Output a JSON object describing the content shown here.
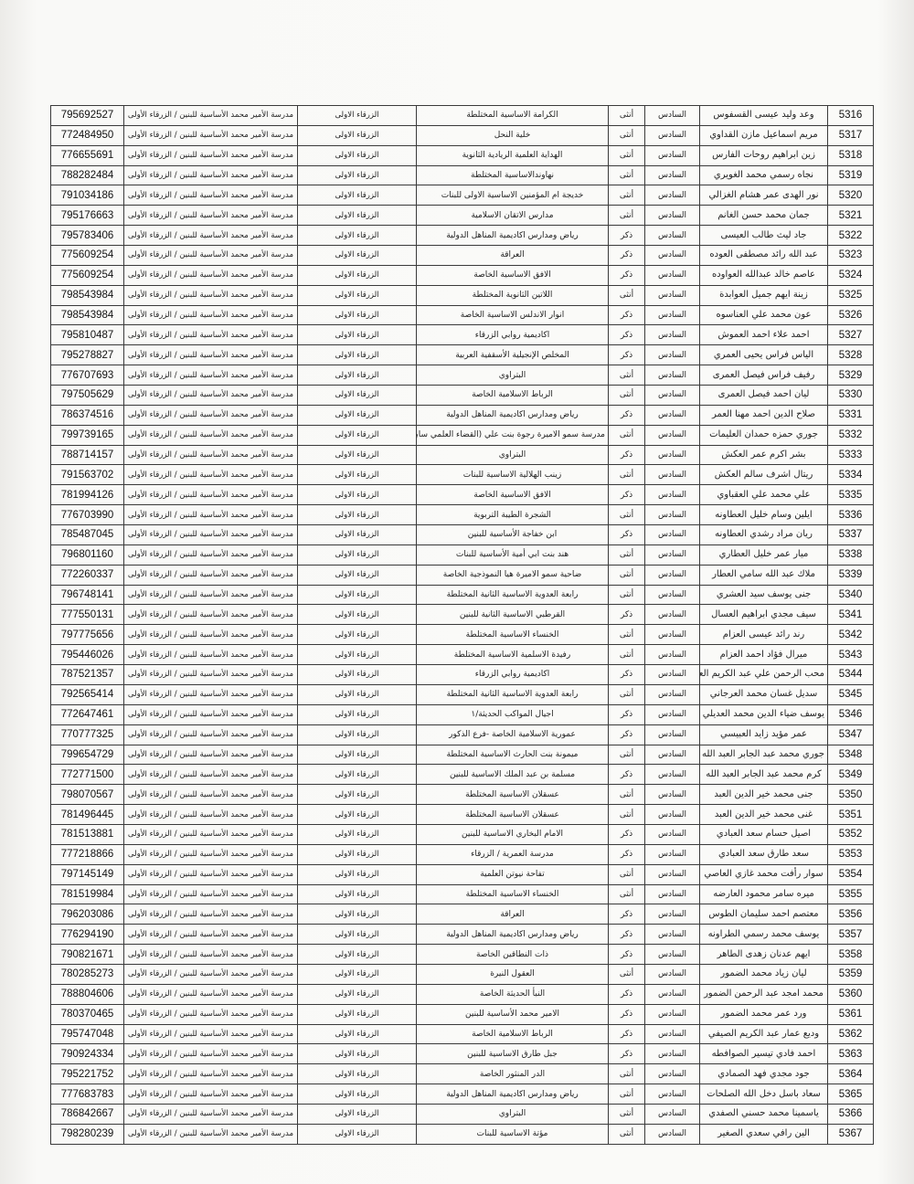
{
  "defaults": {
    "grade": "السادس",
    "region": "الزرقاء الاولى",
    "exam_center": "مدرسة الأمير محمد الأساسية للبنين / الزرقاء الأولى"
  },
  "rows": [
    {
      "no": "5316",
      "name": "وعد وليد عيسى القسفوس",
      "grade": "السادس",
      "gender": "أنثى",
      "school": "الكرامة الاساسية المختلطة",
      "region": "الزرقاء الاولى",
      "center": "مدرسة الأمير محمد الأساسية للبنين / الزرقاء الأولى",
      "phone": "795692527"
    },
    {
      "no": "5317",
      "name": "مريم اسماعيل مازن القداوي",
      "grade": "السادس",
      "gender": "أنثى",
      "school": "خلية النحل",
      "region": "الزرقاء الاولى",
      "center": "مدرسة الأمير محمد الأساسية للبنين / الزرقاء الأولى",
      "phone": "772484950"
    },
    {
      "no": "5318",
      "name": "زين ابراهيم روحات الفارس",
      "grade": "السادس",
      "gender": "أنثى",
      "school": "الهداية العلمية الريادية الثانوية",
      "region": "الزرقاء الاولى",
      "center": "مدرسة الأمير محمد الأساسية للبنين / الزرقاء الأولى",
      "phone": "776655691"
    },
    {
      "no": "5319",
      "name": "نجاه رسمي محمد الغويري",
      "grade": "السادس",
      "gender": "أنثى",
      "school": "نهاوندالاساسية المختلطة",
      "region": "الزرقاء الاولى",
      "center": "مدرسة الأمير محمد الأساسية للبنين / الزرقاء الأولى",
      "phone": "788282484"
    },
    {
      "no": "5320",
      "name": "نور الهدى عمر هشام الغزالي",
      "grade": "السادس",
      "gender": "أنثى",
      "school": "خديجة ام المؤمنين الاساسية الاولى للبنات",
      "region": "الزرقاء الاولى",
      "center": "مدرسة الأمير محمد الأساسية للبنين / الزرقاء الأولى",
      "phone": "791034186"
    },
    {
      "no": "5321",
      "name": "جمان محمد حسن الغانم",
      "grade": "السادس",
      "gender": "أنثى",
      "school": "مدارس الاتقان الاسلامية",
      "region": "الزرقاء الاولى",
      "center": "مدرسة الأمير محمد الأساسية للبنين / الزرقاء الأولى",
      "phone": "795176663"
    },
    {
      "no": "5322",
      "name": "جاد ليث طالب العيسى",
      "grade": "السادس",
      "gender": "ذكر",
      "school": "رياض ومدارس اكاديمية المناهل الدولية",
      "region": "الزرقاء الاولى",
      "center": "مدرسة الأمير محمد الأساسية للبنين / الزرقاء الأولى",
      "phone": "795783406"
    },
    {
      "no": "5323",
      "name": "عبد الله رائد مصطفى العوده",
      "grade": "السادس",
      "gender": "ذكر",
      "school": "العراقة",
      "region": "الزرقاء الاولى",
      "center": "مدرسة الأمير محمد الأساسية للبنين / الزرقاء الأولى",
      "phone": "775609254"
    },
    {
      "no": "5324",
      "name": "عاصم خالد عبدالله العواوده",
      "grade": "السادس",
      "gender": "ذكر",
      "school": "الافق الاساسية الخاصة",
      "region": "الزرقاء الاولى",
      "center": "مدرسة الأمير محمد الأساسية للبنين / الزرقاء الأولى",
      "phone": "775609254"
    },
    {
      "no": "5325",
      "name": "زينة ايهم جميل العوابدة",
      "grade": "السادس",
      "gender": "أنثى",
      "school": "اللاتين الثانوية المختلطة",
      "region": "الزرقاء الاولى",
      "center": "مدرسة الأمير محمد الأساسية للبنين / الزرقاء الأولى",
      "phone": "798543984"
    },
    {
      "no": "5326",
      "name": "عون محمد علي العناسوه",
      "grade": "السادس",
      "gender": "ذكر",
      "school": "انوار الاندلس الاساسية الخاصة",
      "region": "الزرقاء الاولى",
      "center": "مدرسة الأمير محمد الأساسية للبنين / الزرقاء الأولى",
      "phone": "798543984"
    },
    {
      "no": "5327",
      "name": "احمد علاء احمد العموش",
      "grade": "السادس",
      "gender": "ذكر",
      "school": "اكاديمية روابي الزرقاء",
      "region": "الزرقاء الاولى",
      "center": "مدرسة الأمير محمد الأساسية للبنين / الزرقاء الأولى",
      "phone": "795810487"
    },
    {
      "no": "5328",
      "name": "الياس فراس يحيى العمري",
      "grade": "السادس",
      "gender": "ذكر",
      "school": "المخلص الإنجيلية الأسقفية العربية",
      "region": "الزرقاء الاولى",
      "center": "مدرسة الأمير محمد الأساسية للبنين / الزرقاء الأولى",
      "phone": "795278827"
    },
    {
      "no": "5329",
      "name": "رفيف فراس فيصل العمرى",
      "grade": "السادس",
      "gender": "أنثى",
      "school": "البتراوي",
      "region": "الزرقاء الاولى",
      "center": "مدرسة الأمير محمد الأساسية للبنين / الزرقاء الأولى",
      "phone": "776707693"
    },
    {
      "no": "5330",
      "name": "ليان احمد فيصل العمرى",
      "grade": "السادس",
      "gender": "أنثى",
      "school": "الرباط الاسلامية الخاصة",
      "region": "الزرقاء الاولى",
      "center": "مدرسة الأمير محمد الأساسية للبنين / الزرقاء الأولى",
      "phone": "797505629"
    },
    {
      "no": "5331",
      "name": "صلاح الدين احمد مهنا العمر",
      "grade": "السادس",
      "gender": "ذكر",
      "school": "رياض ومدارس اكاديمية المناهل الدولية",
      "region": "الزرقاء الاولى",
      "center": "مدرسة الأمير محمد الأساسية للبنين / الزرقاء الأولى",
      "phone": "786374516"
    },
    {
      "no": "5332",
      "name": "جوري حمزه حمدان العليمات",
      "grade": "السادس",
      "gender": "أنثى",
      "school": "مدرسة سمو الاميرة رجوة بنت علي (القضاء العلمي سابقا)",
      "region": "الزرقاء الاولى",
      "center": "مدرسة الأمير محمد الأساسية للبنين / الزرقاء الأولى",
      "phone": "799739165"
    },
    {
      "no": "5333",
      "name": "بشر اكرم عمر العكش",
      "grade": "السادس",
      "gender": "ذكر",
      "school": "البتراوي",
      "region": "الزرقاء الاولى",
      "center": "مدرسة الأمير محمد الأساسية للبنين / الزرقاء الأولى",
      "phone": "788714157"
    },
    {
      "no": "5334",
      "name": "ريتال اشرف سالم العكش",
      "grade": "السادس",
      "gender": "أنثى",
      "school": "زينب الهلالية الاساسية للبنات",
      "region": "الزرقاء الاولى",
      "center": "مدرسة الأمير محمد الأساسية للبنين / الزرقاء الأولى",
      "phone": "791563702"
    },
    {
      "no": "5335",
      "name": "علي محمد علي العقباوي",
      "grade": "السادس",
      "gender": "ذكر",
      "school": "الافق الاساسية الخاصة",
      "region": "الزرقاء الاولى",
      "center": "مدرسة الأمير محمد الأساسية للبنين / الزرقاء الأولى",
      "phone": "781994126"
    },
    {
      "no": "5336",
      "name": "ايلين وسام خليل العطاونه",
      "grade": "السادس",
      "gender": "أنثى",
      "school": "الشجرة الطيبة التربوية",
      "region": "الزرقاء الاولى",
      "center": "مدرسة الأمير محمد الأساسية للبنين / الزرقاء الأولى",
      "phone": "776703990"
    },
    {
      "no": "5337",
      "name": "ريان مراد رشدي العطاونه",
      "grade": "السادس",
      "gender": "ذكر",
      "school": "ابن خفاجة الأساسية للبنين",
      "region": "الزرقاء الاولى",
      "center": "مدرسة الأمير محمد الأساسية للبنين / الزرقاء الأولى",
      "phone": "785487045"
    },
    {
      "no": "5338",
      "name": "ميار عمر خليل العطاري",
      "grade": "السادس",
      "gender": "أنثى",
      "school": "هند بنت ابي أمية الأساسية للبنات",
      "region": "الزرقاء الاولى",
      "center": "مدرسة الأمير محمد الأساسية للبنين / الزرقاء الأولى",
      "phone": "796801160"
    },
    {
      "no": "5339",
      "name": "ملاك عبد الله سامي العطار",
      "grade": "السادس",
      "gender": "أنثى",
      "school": "ضاحية سمو الاميرة هيا النموذجية الخاصة",
      "region": "الزرقاء الاولى",
      "center": "مدرسة الأمير محمد الأساسية للبنين / الزرقاء الأولى",
      "phone": "772260337"
    },
    {
      "no": "5340",
      "name": "جنى يوسف سيد العشري",
      "grade": "السادس",
      "gender": "أنثى",
      "school": "رابعة العدوية الاساسية الثانية المختلطة",
      "region": "الزرقاء الاولى",
      "center": "مدرسة الأمير محمد الأساسية للبنين / الزرقاء الأولى",
      "phone": "796748141"
    },
    {
      "no": "5341",
      "name": "سيف مجدي ابراهيم العسال",
      "grade": "السادس",
      "gender": "ذكر",
      "school": "القرطبي الاساسية الثانية للبنين",
      "region": "الزرقاء الاولى",
      "center": "مدرسة الأمير محمد الأساسية للبنين / الزرقاء الأولى",
      "phone": "777550131"
    },
    {
      "no": "5342",
      "name": "رند رائد عيسى العزام",
      "grade": "السادس",
      "gender": "أنثى",
      "school": "الخنساء الاساسية المختلطة",
      "region": "الزرقاء الاولى",
      "center": "مدرسة الأمير محمد الأساسية للبنين / الزرقاء الأولى",
      "phone": "797775656"
    },
    {
      "no": "5343",
      "name": "ميرال فؤاد احمد العزام",
      "grade": "السادس",
      "gender": "أنثى",
      "school": "رفيدة الاسلمية الاساسية المختلطة",
      "region": "الزرقاء الاولى",
      "center": "مدرسة الأمير محمد الأساسية للبنين / الزرقاء الأولى",
      "phone": "795446026"
    },
    {
      "no": "5344",
      "name": "محب الرحمن علي عبد الكريم العرود",
      "grade": "السادس",
      "gender": "ذكر",
      "school": "اكاديمية روابي الزرقاء",
      "region": "الزرقاء الاولى",
      "center": "مدرسة الأمير محمد الأساسية للبنين / الزرقاء الأولى",
      "phone": "787521357"
    },
    {
      "no": "5345",
      "name": "سديل غسان محمد العرجاني",
      "grade": "السادس",
      "gender": "أنثى",
      "school": "رابعة العدوية الاساسية الثانية المختلطة",
      "region": "الزرقاء الاولى",
      "center": "مدرسة الأمير محمد الأساسية للبنين / الزرقاء الأولى",
      "phone": "792565414"
    },
    {
      "no": "5346",
      "name": "يوسف ضياء الدين محمد العديلي",
      "grade": "السادس",
      "gender": "ذكر",
      "school": "اجيال المواكب الحديثة/١",
      "region": "الزرقاء الاولى",
      "center": "مدرسة الأمير محمد الأساسية للبنين / الزرقاء الأولى",
      "phone": "772647461"
    },
    {
      "no": "5347",
      "name": "عمر مؤيد زايد العبيسي",
      "grade": "السادس",
      "gender": "ذكر",
      "school": "عمورية الاسلامية الخاصة -فرع الذكور",
      "region": "الزرقاء الاولى",
      "center": "مدرسة الأمير محمد الأساسية للبنين / الزرقاء الأولى",
      "phone": "770777325"
    },
    {
      "no": "5348",
      "name": "جوري محمد عبد الجابر العبد الله",
      "grade": "السادس",
      "gender": "أنثى",
      "school": "ميمونة بنت الحارث الاساسية المختلطة",
      "region": "الزرقاء الاولى",
      "center": "مدرسة الأمير محمد الأساسية للبنين / الزرقاء الأولى",
      "phone": "799654729"
    },
    {
      "no": "5349",
      "name": "كرم محمد عبد الجابر العبد الله",
      "grade": "السادس",
      "gender": "ذكر",
      "school": "مسلمة بن عبد الملك الاساسية للبنين",
      "region": "الزرقاء الاولى",
      "center": "مدرسة الأمير محمد الأساسية للبنين / الزرقاء الأولى",
      "phone": "772771500"
    },
    {
      "no": "5350",
      "name": "جنى محمد خير الدين العبد",
      "grade": "السادس",
      "gender": "أنثى",
      "school": "عسقلان الاساسية المختلطة",
      "region": "الزرقاء الاولى",
      "center": "مدرسة الأمير محمد الأساسية للبنين / الزرقاء الأولى",
      "phone": "798070567"
    },
    {
      "no": "5351",
      "name": "غنى محمد خير الدين العبد",
      "grade": "السادس",
      "gender": "أنثى",
      "school": "عسقلان الاساسية المختلطة",
      "region": "الزرقاء الاولى",
      "center": "مدرسة الأمير محمد الأساسية للبنين / الزرقاء الأولى",
      "phone": "781496445"
    },
    {
      "no": "5352",
      "name": "اصيل حسام سعد العبادي",
      "grade": "السادس",
      "gender": "ذكر",
      "school": "الامام البخاري الاساسية للبنين",
      "region": "الزرقاء الاولى",
      "center": "مدرسة الأمير محمد الأساسية للبنين / الزرقاء الأولى",
      "phone": "781513881"
    },
    {
      "no": "5353",
      "name": "سعد طارق سعد العبادي",
      "grade": "السادس",
      "gender": "ذكر",
      "school": "مدرسة العمرية / الزرقاء",
      "region": "الزرقاء الاولى",
      "center": "مدرسة الأمير محمد الأساسية للبنين / الزرقاء الأولى",
      "phone": "777218866"
    },
    {
      "no": "5354",
      "name": "سوار رأفت محمد غازي العاصي",
      "grade": "السادس",
      "gender": "أنثى",
      "school": "تفاحة نيوتن العلمية",
      "region": "الزرقاء الاولى",
      "center": "مدرسة الأمير محمد الأساسية للبنين / الزرقاء الأولى",
      "phone": "797145149"
    },
    {
      "no": "5355",
      "name": "ميره سامر محمود العارضه",
      "grade": "السادس",
      "gender": "أنثى",
      "school": "الخنساء الاساسية المختلطة",
      "region": "الزرقاء الاولى",
      "center": "مدرسة الأمير محمد الأساسية للبنين / الزرقاء الأولى",
      "phone": "781519984"
    },
    {
      "no": "5356",
      "name": "معتصم احمد سليمان الطوس",
      "grade": "السادس",
      "gender": "ذكر",
      "school": "العراقة",
      "region": "الزرقاء الاولى",
      "center": "مدرسة الأمير محمد الأساسية للبنين / الزرقاء الأولى",
      "phone": "796203086"
    },
    {
      "no": "5357",
      "name": "يوسف محمد رسمي الطراونه",
      "grade": "السادس",
      "gender": "ذكر",
      "school": "رياض ومدارس اكاديمية المناهل الدولية",
      "region": "الزرقاء الاولى",
      "center": "مدرسة الأمير محمد الأساسية للبنين / الزرقاء الأولى",
      "phone": "776294190"
    },
    {
      "no": "5358",
      "name": "ايهم عدنان زهدى الطاهر",
      "grade": "السادس",
      "gender": "ذكر",
      "school": "ذات النطاقين الخاصة",
      "region": "الزرقاء الاولى",
      "center": "مدرسة الأمير محمد الأساسية للبنين / الزرقاء الأولى",
      "phone": "790821671"
    },
    {
      "no": "5359",
      "name": "ليان زياد محمد الضمور",
      "grade": "السادس",
      "gender": "أنثى",
      "school": "العقول النيرة",
      "region": "الزرقاء الاولى",
      "center": "مدرسة الأمير محمد الأساسية للبنين / الزرقاء الأولى",
      "phone": "780285273"
    },
    {
      "no": "5360",
      "name": "محمد امجد عبد الرحمن الضمور",
      "grade": "السادس",
      "gender": "ذكر",
      "school": "النبأ الحديثة الخاصة",
      "region": "الزرقاء الاولى",
      "center": "مدرسة الأمير محمد الأساسية للبنين / الزرقاء الأولى",
      "phone": "788804606"
    },
    {
      "no": "5361",
      "name": "ورد عمر محمد الضمور",
      "grade": "السادس",
      "gender": "ذكر",
      "school": "الامير محمد الأساسية للبنين",
      "region": "الزرقاء الاولى",
      "center": "مدرسة الأمير محمد الأساسية للبنين / الزرقاء الأولى",
      "phone": "780370465"
    },
    {
      "no": "5362",
      "name": "وديع عمار عبد الكريم الصيفي",
      "grade": "السادس",
      "gender": "ذكر",
      "school": "الرباط الاسلامية الخاصة",
      "region": "الزرقاء الاولى",
      "center": "مدرسة الأمير محمد الأساسية للبنين / الزرقاء الأولى",
      "phone": "795747048"
    },
    {
      "no": "5363",
      "name": "احمد فادي تيسير الصوافطه",
      "grade": "السادس",
      "gender": "ذكر",
      "school": "جبل طارق الاساسية للبنين",
      "region": "الزرقاء الاولى",
      "center": "مدرسة الأمير محمد الأساسية للبنين / الزرقاء الأولى",
      "phone": "790924334"
    },
    {
      "no": "5364",
      "name": "جود مجدي فهد الصمادي",
      "grade": "السادس",
      "gender": "أنثى",
      "school": "الدر المنثور الخاصة",
      "region": "الزرقاء الاولى",
      "center": "مدرسة الأمير محمد الأساسية للبنين / الزرقاء الأولى",
      "phone": "795221752"
    },
    {
      "no": "5365",
      "name": "سعاد باسل دخل الله الصلحات",
      "grade": "السادس",
      "gender": "أنثى",
      "school": "رياض ومدارس اكاديمية المناهل الدولية",
      "region": "الزرقاء الاولى",
      "center": "مدرسة الأمير محمد الأساسية للبنين / الزرقاء الأولى",
      "phone": "777683783"
    },
    {
      "no": "5366",
      "name": "ياسمينا محمد حسني الصفدي",
      "grade": "السادس",
      "gender": "أنثى",
      "school": "البتراوي",
      "region": "الزرقاء الاولى",
      "center": "مدرسة الأمير محمد الأساسية للبنين / الزرقاء الأولى",
      "phone": "786842667"
    },
    {
      "no": "5367",
      "name": "الين رافي سعدي الصغير",
      "grade": "السادس",
      "gender": "أنثى",
      "school": "مؤتة الاساسية للبنات",
      "region": "الزرقاء الاولى",
      "center": "مدرسة الأمير محمد الأساسية للبنين / الزرقاء الأولى",
      "phone": "798280239"
    }
  ]
}
